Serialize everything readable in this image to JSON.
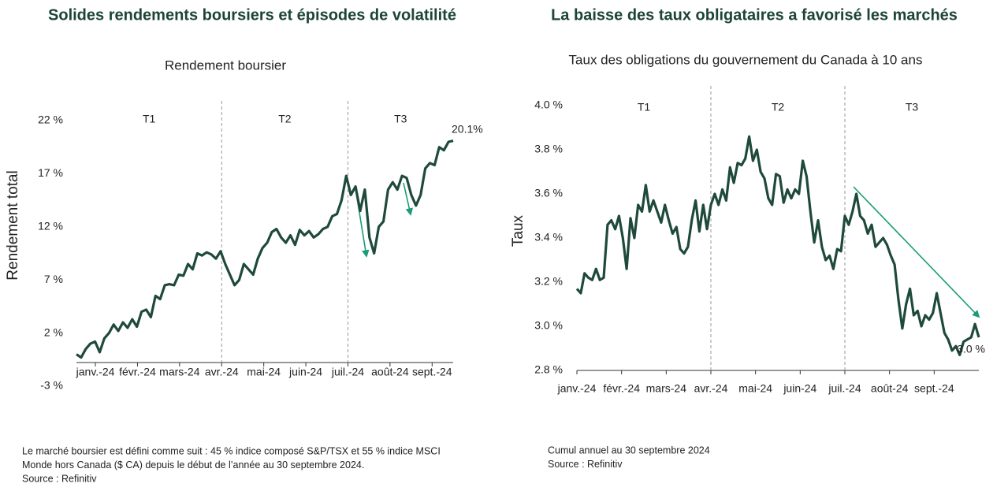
{
  "chart_data": [
    {
      "type": "line",
      "title": "Solides rendements boursiers et épisodes de volatilité",
      "subtitle": "Rendement boursier",
      "ylabel": "Rendement total",
      "color": "#1f4a3b",
      "xlim": [
        -0.45,
        8.5
      ],
      "xticks": [
        {
          "value": 0,
          "label": "janv.-24"
        },
        {
          "value": 1,
          "label": "févr.-24"
        },
        {
          "value": 2,
          "label": "mars-24"
        },
        {
          "value": 3,
          "label": "avr.-24"
        },
        {
          "value": 4,
          "label": "mai-24"
        },
        {
          "value": 5,
          "label": "juin-24"
        },
        {
          "value": 6,
          "label": "juil.-24"
        },
        {
          "value": 7,
          "label": "août-24"
        },
        {
          "value": 8,
          "label": "sept.-24"
        }
      ],
      "ylim": [
        -3,
        22
      ],
      "yticks": [
        {
          "value": -3,
          "label": "-3 %"
        },
        {
          "value": 2,
          "label": "2 %"
        },
        {
          "value": 7,
          "label": "7 %"
        },
        {
          "value": 12,
          "label": "12 %"
        },
        {
          "value": 17,
          "label": "17 %"
        },
        {
          "value": 22,
          "label": "22 %"
        }
      ],
      "dividers": [
        3,
        6
      ],
      "sections": [
        "T1",
        "T2",
        "T3"
      ],
      "annotation": "20.1%",
      "values": [
        0,
        -0.3,
        0.5,
        1,
        1.2,
        0.2,
        1.5,
        2,
        2.8,
        2.2,
        3,
        2.5,
        3.3,
        2.6,
        4,
        4.2,
        3.5,
        5.5,
        5.2,
        6.5,
        6.6,
        6.5,
        7.5,
        7.4,
        8.5,
        8.0,
        9.5,
        9.3,
        9.6,
        9.4,
        9.0,
        9.7,
        8.5,
        7.5,
        6.5,
        7.0,
        8.5,
        8.0,
        7.5,
        9,
        10,
        10.5,
        11.5,
        11.8,
        11.0,
        10.5,
        11.2,
        10.3,
        11.7,
        11.2,
        11.6,
        11.0,
        11.3,
        11.8,
        12,
        13,
        13.2,
        14.5,
        16.8,
        15,
        15.8,
        13.5,
        15.5,
        11,
        9.5,
        12,
        12.5,
        15.5,
        16.2,
        15.5,
        16.8,
        16.6,
        15,
        14,
        15,
        17.5,
        18,
        17.8,
        19.5,
        19.2,
        20,
        20.1
      ],
      "notes": [
        "Le marché boursier est défini comme suit : 45 % indice composé S&P/TSX et 55 % indice MSCI",
        "Monde hors Canada ($ CA) depuis le début de l’année au 30 septembre 2024.",
        "Source : Refinitiv"
      ]
    },
    {
      "type": "line",
      "title": "La baisse des taux obligataires a favorisé les marchés",
      "subtitle": "Taux des obligations du gouvernement du Canada à 10 ans",
      "ylabel": "Taux",
      "color": "#1f4a3b",
      "xlim": [
        0,
        9
      ],
      "xticks": [
        {
          "value": 0,
          "label": "janv.-24"
        },
        {
          "value": 1,
          "label": "févr.-24"
        },
        {
          "value": 2,
          "label": "mars-24"
        },
        {
          "value": 3,
          "label": "avr.-24"
        },
        {
          "value": 4,
          "label": "mai-24"
        },
        {
          "value": 5,
          "label": "juin-24"
        },
        {
          "value": 6,
          "label": "juil.-24"
        },
        {
          "value": 7,
          "label": "août-24"
        },
        {
          "value": 8,
          "label": "sept.-24"
        }
      ],
      "ylim": [
        2.8,
        4.0
      ],
      "yticks": [
        {
          "value": 2.8,
          "label": "2.8 %"
        },
        {
          "value": 3.0,
          "label": "3.0 %"
        },
        {
          "value": 3.2,
          "label": "3.2 %"
        },
        {
          "value": 3.4,
          "label": "3.4 %"
        },
        {
          "value": 3.6,
          "label": "3.6 %"
        },
        {
          "value": 3.8,
          "label": "3.8 %"
        },
        {
          "value": 4.0,
          "label": "4.0 %"
        }
      ],
      "dividers": [
        3,
        6
      ],
      "sections": [
        "T1",
        "T2",
        "T3"
      ],
      "annotation": "3.0 %",
      "values": [
        3.17,
        3.15,
        3.24,
        3.22,
        3.21,
        3.26,
        3.21,
        3.22,
        3.46,
        3.48,
        3.44,
        3.5,
        3.4,
        3.26,
        3.49,
        3.4,
        3.55,
        3.52,
        3.64,
        3.52,
        3.57,
        3.52,
        3.47,
        3.55,
        3.48,
        3.42,
        3.45,
        3.35,
        3.33,
        3.36,
        3.48,
        3.57,
        3.43,
        3.55,
        3.44,
        3.55,
        3.6,
        3.55,
        3.62,
        3.57,
        3.72,
        3.65,
        3.74,
        3.73,
        3.76,
        3.86,
        3.75,
        3.8,
        3.7,
        3.67,
        3.58,
        3.55,
        3.69,
        3.68,
        3.56,
        3.62,
        3.58,
        3.62,
        3.6,
        3.75,
        3.68,
        3.52,
        3.38,
        3.48,
        3.36,
        3.3,
        3.32,
        3.26,
        3.35,
        3.34,
        3.5,
        3.46,
        3.52,
        3.6,
        3.5,
        3.48,
        3.42,
        3.46,
        3.36,
        3.38,
        3.4,
        3.37,
        3.32,
        3.28,
        3.12,
        2.99,
        3.1,
        3.17,
        3.05,
        3.07,
        3.0,
        3.05,
        3.03,
        3.06,
        3.15,
        3.06,
        2.97,
        2.94,
        2.89,
        2.91,
        2.87,
        2.93,
        2.94,
        2.95,
        3.01,
        2.95
      ],
      "notes": [
        "Cumul annuel au 30 septembre 2024",
        "Source : Refinitiv"
      ]
    }
  ]
}
